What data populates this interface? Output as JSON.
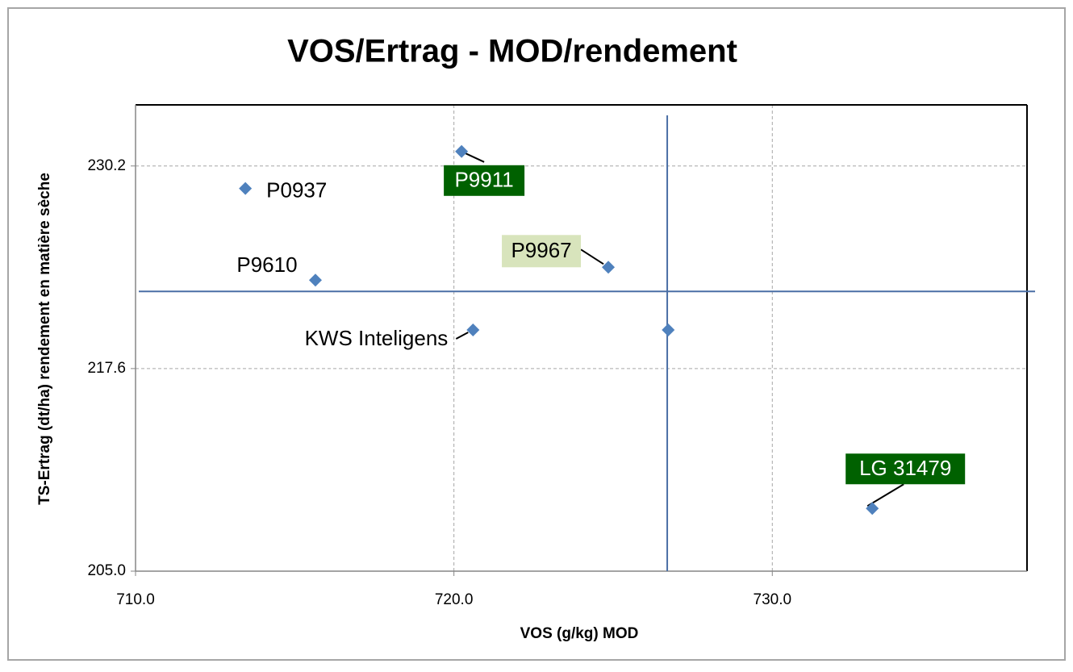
{
  "chart_data": {
    "type": "scatter",
    "title": "VOS/Ertrag - MOD/rendement",
    "x_label": "VOS (g/kg) MOD",
    "y_label": "TS-Ertrag (dt/ha) rendement en matière sèche",
    "xlim": [
      710,
      738
    ],
    "ylim": [
      205,
      234
    ],
    "xticks": [
      {
        "value": 710,
        "label": "710.0"
      },
      {
        "value": 720,
        "label": "720.0"
      },
      {
        "value": 730,
        "label": "730.0"
      }
    ],
    "yticks": [
      {
        "value": 205,
        "label": "205.0"
      },
      217.6,
      230.2
    ],
    "grid": true,
    "series": [
      {
        "color": "#4f81bd",
        "x": [
          713.45,
          720.24,
          724.85,
          715.65,
          720.6,
          726.73,
          733.14
        ],
        "values": [
          228.8,
          231.1,
          223.9,
          223.1,
          220.0,
          220.0,
          208.9
        ],
        "labels": [
          "P0937",
          "P9911",
          "P9967",
          "P9610",
          "KWS Inteligens",
          null,
          "LG 31479"
        ],
        "label_colors": [
          null,
          "#006100",
          "#d8e4bc",
          null,
          null,
          null,
          "#006100"
        ]
      }
    ],
    "reference_lines": [
      {
        "axis": "x",
        "value": 726.7,
        "color": "#4a6fa5"
      },
      {
        "axis": "y",
        "value": 222.4,
        "color": "#4a6fa5"
      }
    ]
  }
}
